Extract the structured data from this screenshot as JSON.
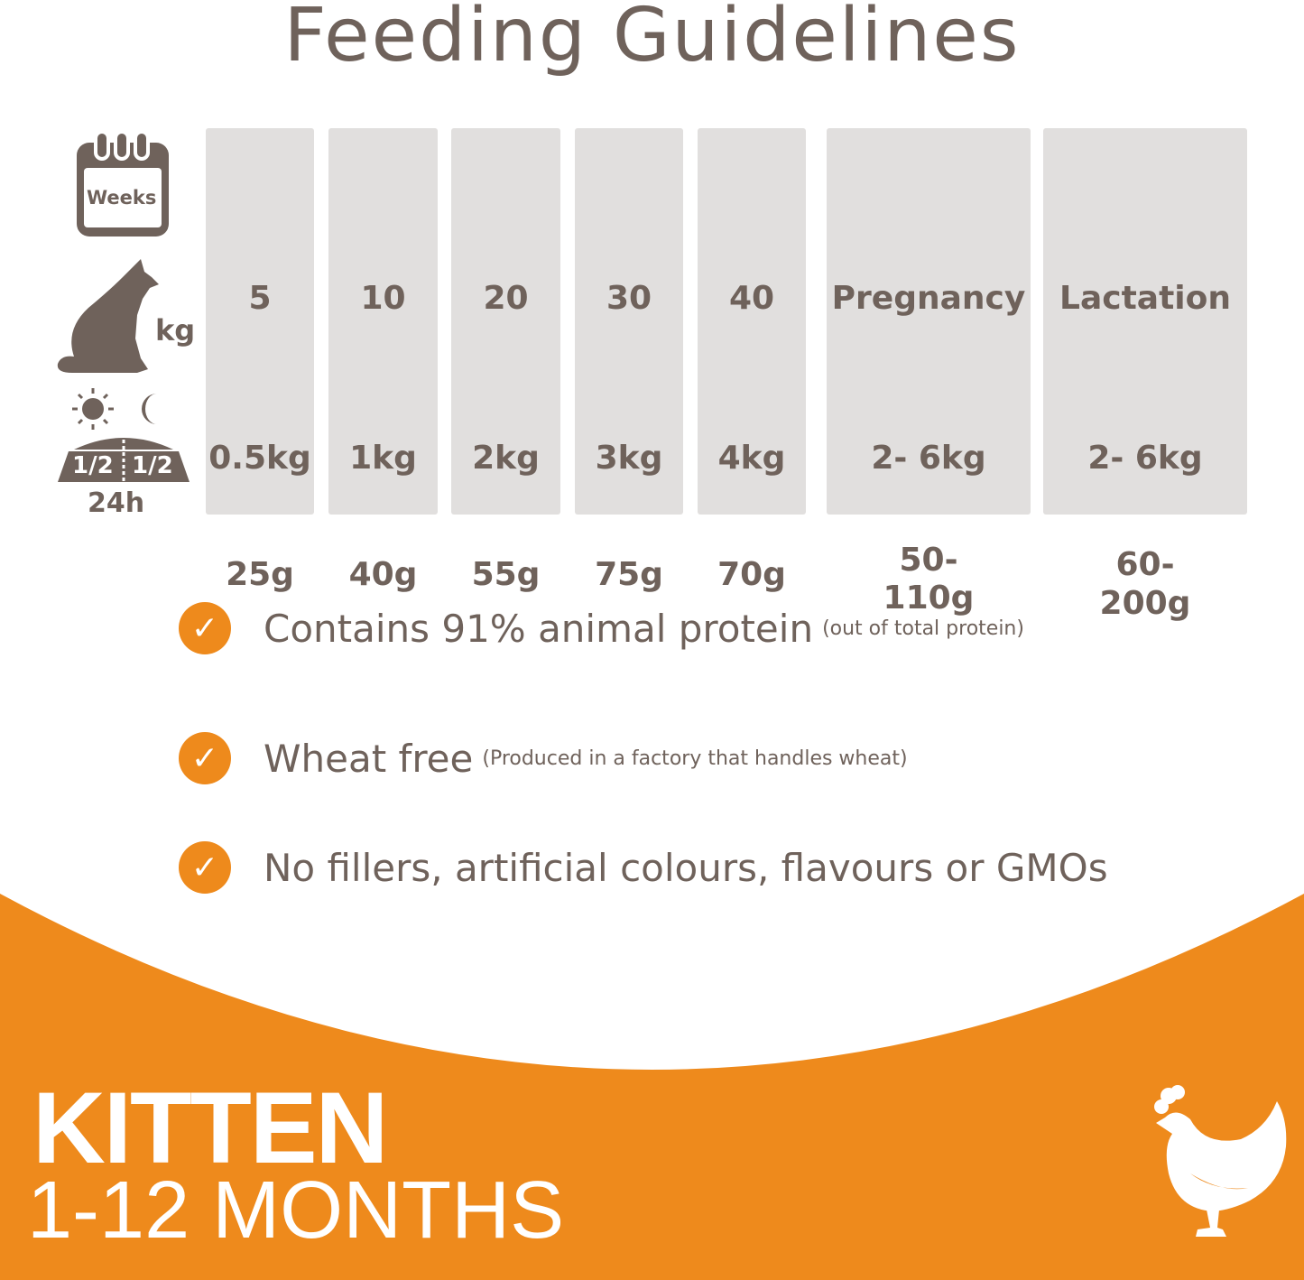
{
  "title": "Feeding Guidelines",
  "row_icons": {
    "weeks_label": "Weeks",
    "weight_label": "kg",
    "portion_left": "1/2",
    "portion_right": "1/2",
    "portion_period": "24h",
    "icons": [
      "calendar-icon",
      "cat-icon",
      "sun-icon",
      "moon-icon",
      "food-bowl-icon"
    ]
  },
  "table": {
    "columns": [
      {
        "age": "5",
        "weight": "0.5kg",
        "amount": "25g"
      },
      {
        "age": "10",
        "weight": "1kg",
        "amount": "40g"
      },
      {
        "age": "20",
        "weight": "2kg",
        "amount": "55g"
      },
      {
        "age": "30",
        "weight": "3kg",
        "amount": "75g"
      },
      {
        "age": "40",
        "weight": "4kg",
        "amount": "70g"
      },
      {
        "age": "Pregnancy",
        "weight": "2- 6kg",
        "amount_line1": "50-",
        "amount_line2": "110g"
      },
      {
        "age": "Lactation",
        "weight": "2- 6kg",
        "amount_line1": "60-",
        "amount_line2": "200g"
      }
    ]
  },
  "features": [
    {
      "text": "Contains 91% animal protein",
      "note": "(out of total protein)"
    },
    {
      "text": "Wheat free",
      "note": "(Produced in a factory that handles wheat)"
    },
    {
      "text": "No fillers, artificial colours, flavours or GMOs",
      "note": ""
    }
  ],
  "check_glyph": "✓",
  "banner": {
    "line1": "KITTEN",
    "line2": "1-12 MONTHS",
    "icon": "chicken-icon"
  },
  "colors": {
    "text": "#6f625b",
    "column_bg": "#e1dfde",
    "accent": "#ee8a1c"
  }
}
